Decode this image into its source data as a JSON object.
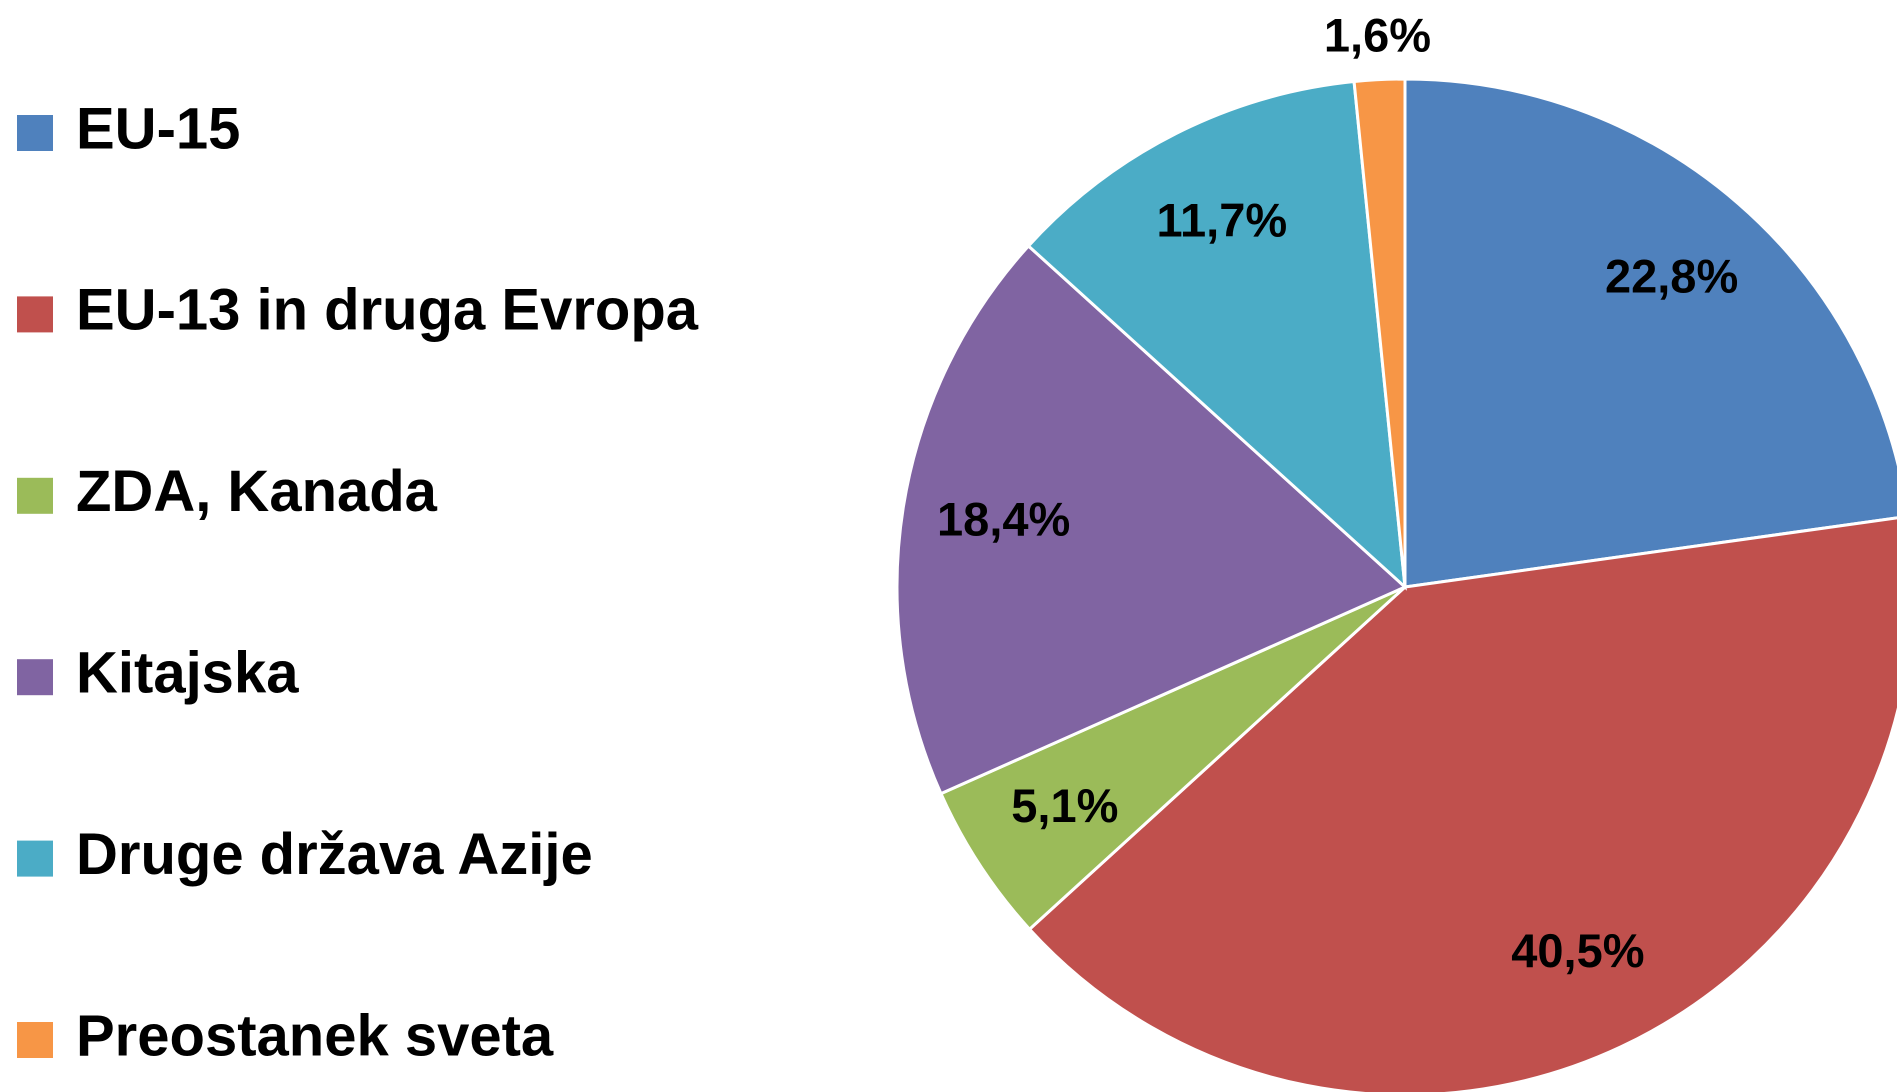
{
  "chart_data": {
    "type": "pie",
    "categories": [
      "EU-15",
      "EU-13 in druga Evropa",
      "ZDA, Kanada",
      "Kitajska",
      "Druge država Azije",
      "Preostanek sveta"
    ],
    "values": [
      22.8,
      40.5,
      5.1,
      18.4,
      11.7,
      1.6
    ],
    "value_labels": [
      "22,8%",
      "40,5%",
      "5,1%",
      "18,4%",
      "11,7%",
      "1,6%"
    ],
    "colors": [
      "#4f81bd",
      "#c0504d",
      "#9bbb59",
      "#8064a2",
      "#4bacc6",
      "#f79646"
    ],
    "legend": "left"
  }
}
